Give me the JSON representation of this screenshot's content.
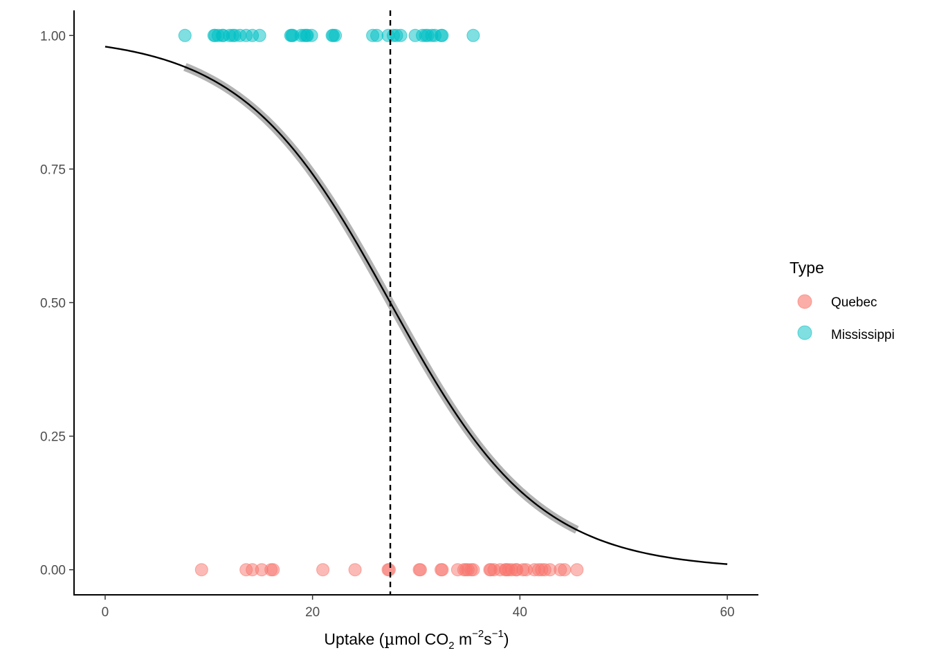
{
  "chart_data": {
    "type": "scatter",
    "title": "",
    "xlabel": {
      "main": "Uptake (",
      "mu": "µ",
      "unit": "mol CO",
      "co2_sub": "2",
      "m": " m",
      "m_sup": "−2",
      "s": "s",
      "s_sup": "−1",
      "close": ")"
    },
    "ylabel": "",
    "xlim": [
      -3,
      63
    ],
    "ylim": [
      -0.047,
      1.047
    ],
    "x_ticks": [
      0,
      20,
      40,
      60
    ],
    "x_tick_labels": [
      "0",
      "20",
      "40",
      "60"
    ],
    "y_ticks": [
      0,
      0.25,
      0.5,
      0.75,
      1.0
    ],
    "y_tick_labels": [
      "0.00",
      "0.25",
      "0.50",
      "0.75",
      "1.00"
    ],
    "grid": false,
    "legend": {
      "title": "Type",
      "position": "right",
      "items": [
        {
          "label": "Quebec",
          "color": "#F8766D"
        },
        {
          "label": "Mississippi",
          "color": "#00BFC4"
        }
      ]
    },
    "series": [
      {
        "name": "Mississippi",
        "color": "#00BFC4",
        "y": 1,
        "x": [
          7.7,
          10.5,
          10.6,
          10.9,
          11.3,
          11.4,
          12.0,
          12.3,
          12.5,
          13.0,
          13.6,
          14.2,
          14.9,
          17.9,
          18.0,
          18.1,
          18.9,
          19.2,
          19.4,
          19.5,
          19.9,
          21.9,
          22.0,
          22.2,
          25.8,
          26.2,
          27.3,
          27.8,
          28.1,
          28.5,
          29.9,
          30.6,
          30.9,
          31.1,
          31.5,
          31.8,
          32.4,
          32.5,
          35.5
        ]
      },
      {
        "name": "Quebec",
        "color": "#F8766D",
        "y": 0,
        "x": [
          9.3,
          13.6,
          14.2,
          15.1,
          16.0,
          16.2,
          21.0,
          24.1,
          27.3,
          27.4,
          30.3,
          30.4,
          32.4,
          32.5,
          34.0,
          34.6,
          34.8,
          35.0,
          35.3,
          35.5,
          37.1,
          37.2,
          37.5,
          38.1,
          38.6,
          38.7,
          38.9,
          39.2,
          39.6,
          39.7,
          40.3,
          40.6,
          41.4,
          41.8,
          42.1,
          42.4,
          42.9,
          43.9,
          44.3,
          45.5
        ]
      }
    ],
    "fit_curve": {
      "type": "logistic",
      "intercept": 3.85,
      "slope": -0.14,
      "x_range": [
        0,
        60
      ]
    },
    "confidence_band": {
      "x_range": [
        7.7,
        45.5
      ]
    },
    "vline": {
      "x": 27.5,
      "style": "dashed"
    }
  }
}
